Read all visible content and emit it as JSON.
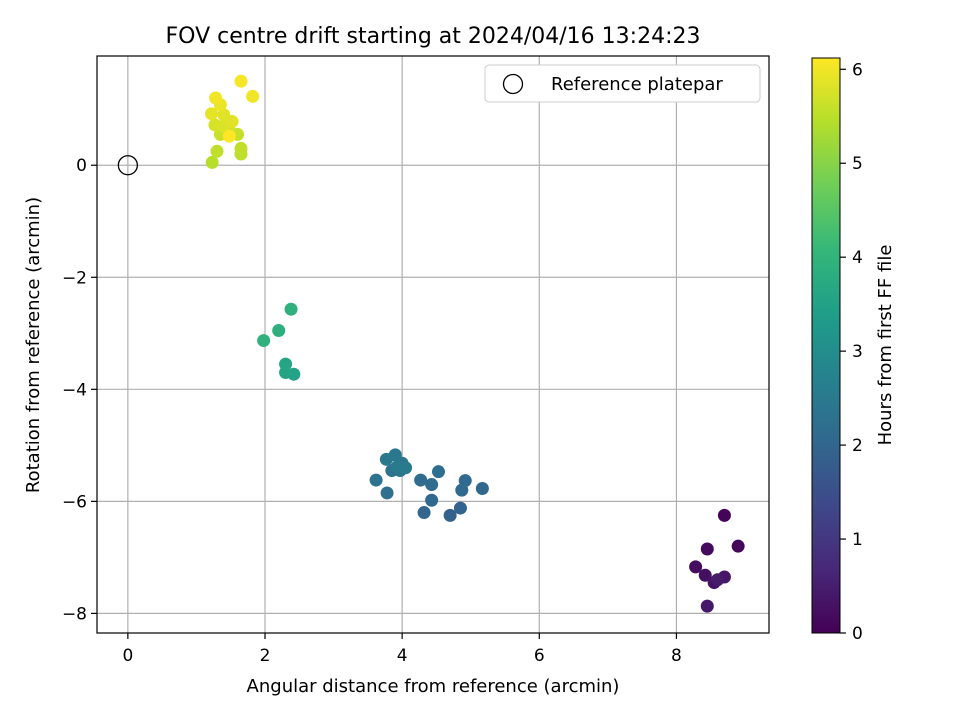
{
  "chart_data": {
    "type": "scatter",
    "title": "FOV centre drift starting at 2024/04/16 13:24:23",
    "xlabel": "Angular distance from reference (arcmin)",
    "ylabel": "Rotation from reference (arcmin)",
    "xlim": [
      -0.45,
      9.35
    ],
    "ylim": [
      -8.35,
      1.95
    ],
    "xticks": [
      0,
      2,
      4,
      6,
      8
    ],
    "yticks": [
      -8,
      -6,
      -4,
      -2,
      0
    ],
    "grid": true,
    "legend": {
      "position": "top-right",
      "entries": [
        "Reference platepar"
      ]
    },
    "reference_point": {
      "x": 0,
      "y": 0
    },
    "colorbar": {
      "label": "Hours from first FF file",
      "range": [
        0,
        6.12
      ],
      "ticks": [
        0,
        1,
        2,
        3,
        4,
        5,
        6
      ],
      "colormap": [
        "#440154",
        "#482878",
        "#3e4989",
        "#31688e",
        "#26828e",
        "#1f9e89",
        "#35b779",
        "#6ece58",
        "#b5de2b",
        "#fde725"
      ]
    },
    "points": [
      {
        "x": 8.7,
        "y": -6.25,
        "c": 0.05
      },
      {
        "x": 8.9,
        "y": -6.8,
        "c": 0.1
      },
      {
        "x": 8.45,
        "y": -6.85,
        "c": 0.15
      },
      {
        "x": 8.28,
        "y": -7.17,
        "c": 0.2
      },
      {
        "x": 8.42,
        "y": -7.32,
        "c": 0.25
      },
      {
        "x": 8.55,
        "y": -7.45,
        "c": 0.3
      },
      {
        "x": 8.7,
        "y": -7.35,
        "c": 0.35
      },
      {
        "x": 8.45,
        "y": -7.87,
        "c": 0.4
      },
      {
        "x": 8.6,
        "y": -7.4,
        "c": 0.45
      },
      {
        "x": 4.7,
        "y": -6.25,
        "c": 1.9
      },
      {
        "x": 4.85,
        "y": -6.12,
        "c": 1.95
      },
      {
        "x": 4.32,
        "y": -6.2,
        "c": 2.0
      },
      {
        "x": 4.43,
        "y": -5.98,
        "c": 2.05
      },
      {
        "x": 5.17,
        "y": -5.77,
        "c": 2.05
      },
      {
        "x": 4.87,
        "y": -5.8,
        "c": 2.1
      },
      {
        "x": 4.92,
        "y": -5.63,
        "c": 2.1
      },
      {
        "x": 4.43,
        "y": -5.7,
        "c": 2.15
      },
      {
        "x": 4.27,
        "y": -5.62,
        "c": 2.15
      },
      {
        "x": 4.53,
        "y": -5.47,
        "c": 2.2
      },
      {
        "x": 3.78,
        "y": -5.85,
        "c": 2.25
      },
      {
        "x": 3.62,
        "y": -5.62,
        "c": 2.3
      },
      {
        "x": 3.85,
        "y": -5.45,
        "c": 2.35
      },
      {
        "x": 3.97,
        "y": -5.45,
        "c": 2.4
      },
      {
        "x": 4.0,
        "y": -5.32,
        "c": 2.4
      },
      {
        "x": 3.77,
        "y": -5.25,
        "c": 2.45
      },
      {
        "x": 3.9,
        "y": -5.17,
        "c": 2.45
      },
      {
        "x": 3.93,
        "y": -5.38,
        "c": 2.5
      },
      {
        "x": 4.05,
        "y": -5.4,
        "c": 2.5
      },
      {
        "x": 2.42,
        "y": -3.73,
        "c": 3.5
      },
      {
        "x": 2.3,
        "y": -3.7,
        "c": 3.55
      },
      {
        "x": 2.3,
        "y": -3.55,
        "c": 3.6
      },
      {
        "x": 2.2,
        "y": -2.95,
        "c": 3.85
      },
      {
        "x": 2.38,
        "y": -2.57,
        "c": 3.9
      },
      {
        "x": 1.98,
        "y": -3.13,
        "c": 3.95
      },
      {
        "x": 1.23,
        "y": 0.05,
        "c": 5.45
      },
      {
        "x": 1.65,
        "y": 0.2,
        "c": 5.5
      },
      {
        "x": 1.65,
        "y": 0.3,
        "c": 5.55
      },
      {
        "x": 1.3,
        "y": 0.25,
        "c": 5.55
      },
      {
        "x": 1.6,
        "y": 0.55,
        "c": 5.6
      },
      {
        "x": 1.35,
        "y": 0.55,
        "c": 5.65
      },
      {
        "x": 1.47,
        "y": 0.65,
        "c": 5.7
      },
      {
        "x": 1.27,
        "y": 0.72,
        "c": 5.75
      },
      {
        "x": 1.4,
        "y": 0.7,
        "c": 5.8
      },
      {
        "x": 1.52,
        "y": 0.78,
        "c": 5.85
      },
      {
        "x": 1.4,
        "y": 0.9,
        "c": 5.85
      },
      {
        "x": 1.22,
        "y": 0.92,
        "c": 5.9
      },
      {
        "x": 1.35,
        "y": 1.08,
        "c": 5.95
      },
      {
        "x": 1.28,
        "y": 1.2,
        "c": 6.0
      },
      {
        "x": 1.82,
        "y": 1.23,
        "c": 6.0
      },
      {
        "x": 1.65,
        "y": 1.5,
        "c": 6.05
      },
      {
        "x": 1.48,
        "y": 0.52,
        "c": 6.1
      }
    ]
  }
}
